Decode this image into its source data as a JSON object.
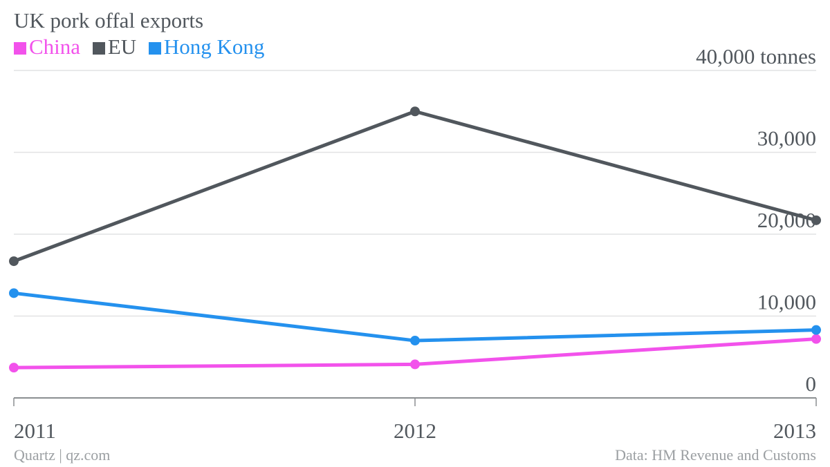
{
  "chart_data": {
    "type": "line",
    "title": "UK pork offal exports",
    "x": [
      "2011",
      "2012",
      "2013"
    ],
    "ylim": [
      0,
      40000
    ],
    "y_ticks": [
      {
        "value": 0,
        "label": "0"
      },
      {
        "value": 10000,
        "label": "10,000"
      },
      {
        "value": 20000,
        "label": "20,000"
      },
      {
        "value": 30000,
        "label": "30,000"
      },
      {
        "value": 40000,
        "label": "40,000 tonnes"
      }
    ],
    "grid": true,
    "legend_position": "top-left",
    "series": [
      {
        "name": "China",
        "color": "#f252eb",
        "values": [
          3700,
          4100,
          7200
        ]
      },
      {
        "name": "EU",
        "color": "#51575d",
        "values": [
          16700,
          35000,
          21700
        ]
      },
      {
        "name": "Hong Kong",
        "color": "#2491ee",
        "values": [
          12800,
          7000,
          8300
        ]
      }
    ]
  },
  "footer": {
    "source_left": "Quartz | qz.com",
    "source_right": "Data: HM Revenue and Customs"
  }
}
